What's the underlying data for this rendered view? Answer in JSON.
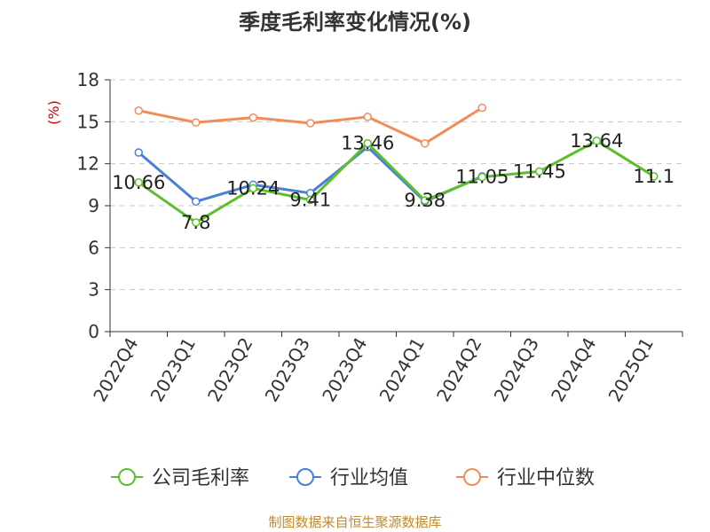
{
  "title": "季度毛利率变化情况(%)",
  "source": "制图数据来自恒生聚源数据库",
  "chart_data": {
    "type": "line",
    "title": "季度毛利率变化情况(%)",
    "unit": "(%)",
    "categories": [
      "2022Q4",
      "2023Q1",
      "2023Q2",
      "2023Q3",
      "2023Q4",
      "2024Q1",
      "2024Q2",
      "2024Q3",
      "2024Q4",
      "2025Q1"
    ],
    "ylim": [
      0,
      18
    ],
    "yticks": [
      0,
      3,
      6,
      9,
      12,
      15,
      18
    ],
    "grid": true,
    "legend_position": "bottom",
    "series": [
      {
        "name": "公司毛利率",
        "color": "#5bbf2c",
        "values": [
          10.66,
          7.8,
          10.24,
          9.41,
          13.46,
          9.38,
          11.05,
          11.45,
          13.64,
          11.1
        ],
        "labels": [
          "10.66",
          "7.8",
          "10.24",
          "9.41",
          "13.46",
          "9.38",
          "11.05",
          "11.45",
          "13.64",
          "11.1"
        ]
      },
      {
        "name": "行业均值",
        "color": "#4a7fd6",
        "values": [
          12.8,
          9.3,
          10.5,
          9.9,
          13.2,
          9.3,
          11.1,
          null,
          null,
          null
        ]
      },
      {
        "name": "行业中位数",
        "color": "#f08c5a",
        "values": [
          15.8,
          14.95,
          15.3,
          14.9,
          15.35,
          13.45,
          16.0,
          null,
          null,
          null
        ]
      }
    ]
  }
}
